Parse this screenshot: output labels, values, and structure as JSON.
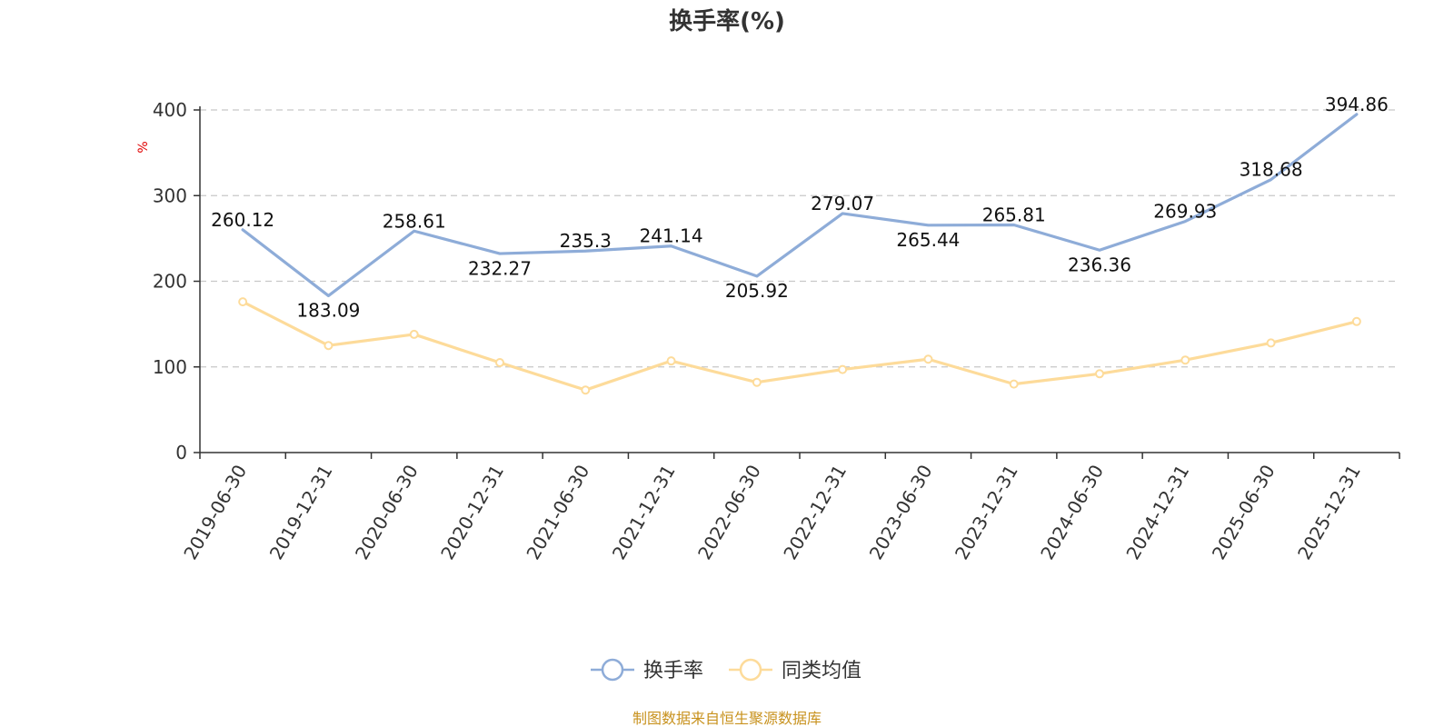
{
  "chart_data": {
    "type": "line",
    "title": "换手率(%)",
    "ylabel": "%",
    "xlabel": "",
    "ylim": [
      0,
      400
    ],
    "yticks": [
      0,
      100,
      200,
      300,
      400
    ],
    "grid": true,
    "legend_position": "bottom-center",
    "categories": [
      "2019-06-30",
      "2019-12-31",
      "2020-06-30",
      "2020-12-31",
      "2021-06-30",
      "2021-12-31",
      "2022-06-30",
      "2022-12-31",
      "2023-06-30",
      "2023-12-31",
      "2024-06-30",
      "2024-12-31",
      "2025-06-30",
      "2025-12-31"
    ],
    "series": [
      {
        "name": "换手率",
        "color": "#8eacd8",
        "show_labels": true,
        "show_markers": false,
        "values": [
          260.12,
          183.09,
          258.61,
          232.27,
          235.3,
          241.14,
          205.92,
          279.07,
          265.44,
          265.81,
          236.36,
          269.93,
          318.68,
          394.86
        ],
        "labels": [
          "260.12",
          "183.09",
          "258.61",
          "232.27",
          "235.3",
          "241.14",
          "205.92",
          "279.07",
          "265.44",
          "265.81",
          "236.36",
          "269.93",
          "318.68",
          "394.86"
        ]
      },
      {
        "name": "同类均值",
        "color": "#fddb9a",
        "show_labels": false,
        "show_markers": true,
        "values": [
          176,
          125,
          138,
          105,
          73,
          107,
          82,
          97,
          109,
          80,
          92,
          108,
          128,
          153
        ]
      }
    ],
    "source": "制图数据来自恒生聚源数据库"
  }
}
